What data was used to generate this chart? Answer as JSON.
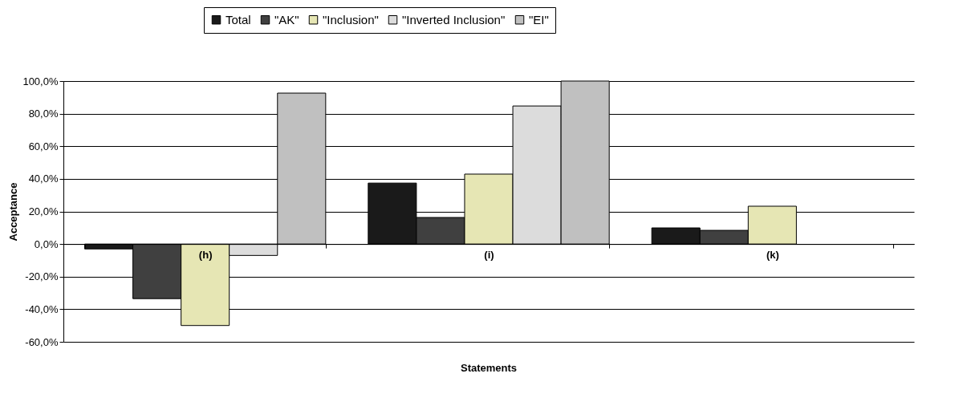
{
  "chart_data": {
    "type": "bar",
    "xlabel": "Statements",
    "ylabel": "Acceptance",
    "categories": [
      "(h)",
      "(i)",
      "(k)"
    ],
    "series": [
      {
        "name": "Total",
        "color": "#1a1a1a",
        "values": [
          -3,
          37.4,
          9.9
        ]
      },
      {
        "name": "\"AK\"",
        "color": "#404040",
        "values": [
          -33.5,
          16.3,
          8.4
        ]
      },
      {
        "name": "\"Inclusion\"",
        "color": "#e6e6b4",
        "values": [
          -50,
          42.9,
          23.2
        ]
      },
      {
        "name": "\"Inverted Inclusion\"",
        "color": "#dcdcdc",
        "values": [
          -7,
          84.7,
          null
        ]
      },
      {
        "name": "\"EI\"",
        "color": "#c0c0c0",
        "values": [
          92.6,
          100,
          null
        ]
      }
    ],
    "ylim": [
      -60,
      100
    ],
    "yticks": [
      {
        "value": -60,
        "label": "-60,0%"
      },
      {
        "value": -40,
        "label": "-40,0%"
      },
      {
        "value": -20,
        "label": "-20,0%"
      },
      {
        "value": 0,
        "label": "0,0%"
      },
      {
        "value": 20,
        "label": "20,0%"
      },
      {
        "value": 40,
        "label": "40,0%"
      },
      {
        "value": 60,
        "label": "60,0%"
      },
      {
        "value": 80,
        "label": "80,0%"
      },
      {
        "value": 100,
        "label": "100,0%"
      }
    ],
    "grid": "y",
    "legend": "top"
  }
}
